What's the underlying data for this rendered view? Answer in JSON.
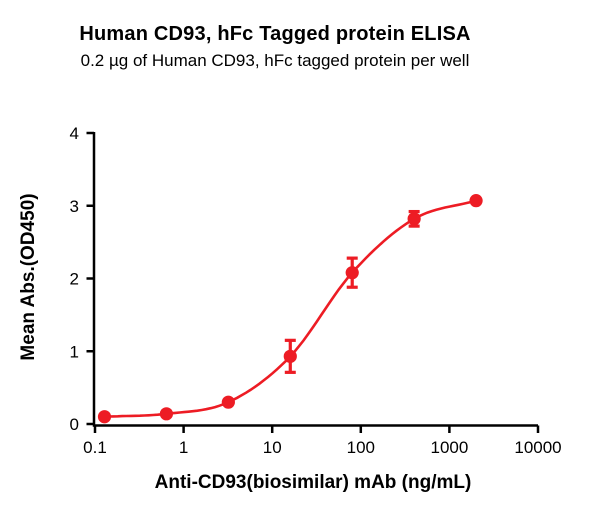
{
  "header": {
    "title": "Human CD93, hFc Tagged protein ELISA",
    "subtitle": "0.2 µg of Human CD93, hFc tagged protein per well"
  },
  "chart_data": {
    "type": "scatter",
    "title": "Human CD93, hFc Tagged protein ELISA",
    "subtitle": "0.2 µg of Human CD93, hFc tagged protein per well",
    "xlabel": "Anti-CD93(biosimilar) mAb (ng/mL)",
    "ylabel": "Mean Abs.(OD450)",
    "x_scale": "log10",
    "xlim": [
      0.1,
      10000
    ],
    "ylim": [
      0,
      4
    ],
    "x_ticks": [
      0.1,
      1,
      10,
      100,
      1000,
      10000
    ],
    "x_tick_labels": [
      "0.1",
      "1",
      "10",
      "100",
      "1000",
      "10000"
    ],
    "y_ticks": [
      0,
      1,
      2,
      3,
      4
    ],
    "y_tick_labels": [
      "0",
      "1",
      "2",
      "3",
      "4"
    ],
    "grid": false,
    "legend": false,
    "curve_style": "sigmoidal-4PL-fit",
    "series": [
      {
        "name": "Anti-CD93(biosimilar) mAb",
        "color": "#ED1C24",
        "marker": "circle",
        "x": [
          0.128,
          0.64,
          3.2,
          16,
          80,
          400,
          2000
        ],
        "y": [
          0.1,
          0.14,
          0.3,
          0.93,
          2.08,
          2.82,
          3.07
        ],
        "y_err": [
          0,
          0,
          0,
          0.22,
          0.2,
          0.1,
          0
        ]
      }
    ]
  }
}
